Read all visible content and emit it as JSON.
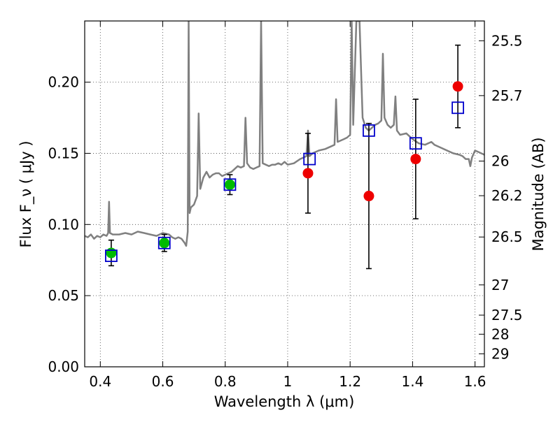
{
  "chart_data": {
    "type": "scatter",
    "xlabel": "Wavelength  λ (μm)",
    "ylabel": "Flux  F_ν  ( μJy )",
    "y2label": "Magnitude (AB)",
    "xlim": [
      0.35,
      1.63
    ],
    "ylim": [
      0.0,
      0.243
    ],
    "grid": true,
    "x_ticks": [
      0.4,
      0.6,
      0.8,
      1.0,
      1.2,
      1.4,
      1.6
    ],
    "x_tick_labels": [
      "0.4",
      "0.6",
      "0.8",
      "1",
      "1.2",
      "1.4",
      "1.6"
    ],
    "y_ticks": [
      0.0,
      0.05,
      0.1,
      0.15,
      0.2
    ],
    "y_tick_labels": [
      "0.00",
      "0.05",
      "0.10",
      "0.15",
      "0.20"
    ],
    "mag_ticks": [
      25.5,
      25.7,
      26,
      26.2,
      26.5,
      27,
      27.5,
      28,
      29
    ],
    "mag_tick_labels": [
      "25.5",
      "25.7",
      "26",
      "26.2",
      "26.5",
      "27",
      "27.5",
      "28",
      "29"
    ],
    "colors": {
      "spectrum": "#808080",
      "green_points": "#00bb00",
      "red_points": "#ee0000",
      "model_squares": "#0000cc",
      "error_bars": "#000000",
      "grid": "#444444"
    },
    "spectrum": [
      [
        0.35,
        0.092
      ],
      [
        0.36,
        0.091
      ],
      [
        0.37,
        0.093
      ],
      [
        0.38,
        0.09
      ],
      [
        0.39,
        0.092
      ],
      [
        0.4,
        0.091
      ],
      [
        0.41,
        0.093
      ],
      [
        0.42,
        0.092
      ],
      [
        0.425,
        0.094
      ],
      [
        0.428,
        0.116
      ],
      [
        0.431,
        0.094
      ],
      [
        0.44,
        0.093
      ],
      [
        0.46,
        0.093
      ],
      [
        0.48,
        0.094
      ],
      [
        0.5,
        0.093
      ],
      [
        0.52,
        0.095
      ],
      [
        0.54,
        0.094
      ],
      [
        0.56,
        0.093
      ],
      [
        0.58,
        0.092
      ],
      [
        0.6,
        0.094
      ],
      [
        0.62,
        0.093
      ],
      [
        0.63,
        0.091
      ],
      [
        0.64,
        0.09
      ],
      [
        0.65,
        0.091
      ],
      [
        0.66,
        0.09
      ],
      [
        0.67,
        0.087
      ],
      [
        0.675,
        0.085
      ],
      [
        0.68,
        0.095
      ],
      [
        0.683,
        0.243
      ],
      [
        0.686,
        0.108
      ],
      [
        0.69,
        0.112
      ],
      [
        0.7,
        0.114
      ],
      [
        0.71,
        0.12
      ],
      [
        0.715,
        0.178
      ],
      [
        0.72,
        0.125
      ],
      [
        0.73,
        0.133
      ],
      [
        0.74,
        0.137
      ],
      [
        0.75,
        0.133
      ],
      [
        0.76,
        0.135
      ],
      [
        0.77,
        0.136
      ],
      [
        0.78,
        0.136
      ],
      [
        0.79,
        0.134
      ],
      [
        0.8,
        0.135
      ],
      [
        0.81,
        0.136
      ],
      [
        0.82,
        0.137
      ],
      [
        0.83,
        0.139
      ],
      [
        0.84,
        0.141
      ],
      [
        0.85,
        0.14
      ],
      [
        0.86,
        0.141
      ],
      [
        0.865,
        0.175
      ],
      [
        0.87,
        0.143
      ],
      [
        0.88,
        0.14
      ],
      [
        0.89,
        0.139
      ],
      [
        0.9,
        0.14
      ],
      [
        0.91,
        0.141
      ],
      [
        0.915,
        0.243
      ],
      [
        0.92,
        0.143
      ],
      [
        0.93,
        0.142
      ],
      [
        0.94,
        0.141
      ],
      [
        0.95,
        0.142
      ],
      [
        0.96,
        0.142
      ],
      [
        0.97,
        0.143
      ],
      [
        0.98,
        0.142
      ],
      [
        0.99,
        0.144
      ],
      [
        1.0,
        0.142
      ],
      [
        1.02,
        0.143
      ],
      [
        1.04,
        0.146
      ],
      [
        1.05,
        0.147
      ],
      [
        1.06,
        0.148
      ],
      [
        1.065,
        0.166
      ],
      [
        1.07,
        0.148
      ],
      [
        1.08,
        0.15
      ],
      [
        1.1,
        0.152
      ],
      [
        1.12,
        0.153
      ],
      [
        1.14,
        0.155
      ],
      [
        1.15,
        0.156
      ],
      [
        1.155,
        0.188
      ],
      [
        1.16,
        0.158
      ],
      [
        1.17,
        0.159
      ],
      [
        1.18,
        0.16
      ],
      [
        1.19,
        0.161
      ],
      [
        1.2,
        0.163
      ],
      [
        1.205,
        0.243
      ],
      [
        1.21,
        0.17
      ],
      [
        1.22,
        0.243
      ],
      [
        1.23,
        0.243
      ],
      [
        1.24,
        0.175
      ],
      [
        1.25,
        0.168
      ],
      [
        1.26,
        0.166
      ],
      [
        1.27,
        0.168
      ],
      [
        1.28,
        0.17
      ],
      [
        1.29,
        0.171
      ],
      [
        1.3,
        0.173
      ],
      [
        1.305,
        0.22
      ],
      [
        1.31,
        0.175
      ],
      [
        1.32,
        0.17
      ],
      [
        1.33,
        0.168
      ],
      [
        1.34,
        0.17
      ],
      [
        1.345,
        0.19
      ],
      [
        1.35,
        0.166
      ],
      [
        1.36,
        0.163
      ],
      [
        1.38,
        0.164
      ],
      [
        1.4,
        0.16
      ],
      [
        1.42,
        0.157
      ],
      [
        1.44,
        0.156
      ],
      [
        1.46,
        0.158
      ],
      [
        1.47,
        0.156
      ],
      [
        1.49,
        0.154
      ],
      [
        1.51,
        0.152
      ],
      [
        1.53,
        0.15
      ],
      [
        1.55,
        0.149
      ],
      [
        1.56,
        0.148
      ],
      [
        1.57,
        0.146
      ],
      [
        1.58,
        0.146
      ],
      [
        1.585,
        0.141
      ],
      [
        1.59,
        0.147
      ],
      [
        1.6,
        0.152
      ],
      [
        1.61,
        0.151
      ],
      [
        1.63,
        0.149
      ]
    ],
    "green_points": [
      {
        "x": 0.435,
        "y": 0.08,
        "err": 0.009
      },
      {
        "x": 0.605,
        "y": 0.087,
        "err": 0.006
      },
      {
        "x": 0.815,
        "y": 0.128,
        "err": 0.007
      }
    ],
    "red_points": [
      {
        "x": 1.065,
        "y": 0.136,
        "err": 0.028
      },
      {
        "x": 1.26,
        "y": 0.12,
        "err": 0.051
      },
      {
        "x": 1.41,
        "y": 0.146,
        "err": 0.042
      },
      {
        "x": 1.545,
        "y": 0.197,
        "err": 0.029
      }
    ],
    "model_squares": [
      {
        "x": 0.435,
        "y": 0.078
      },
      {
        "x": 0.605,
        "y": 0.087
      },
      {
        "x": 0.815,
        "y": 0.128
      },
      {
        "x": 1.07,
        "y": 0.146
      },
      {
        "x": 1.26,
        "y": 0.166
      },
      {
        "x": 1.41,
        "y": 0.157
      },
      {
        "x": 1.545,
        "y": 0.182
      }
    ]
  }
}
